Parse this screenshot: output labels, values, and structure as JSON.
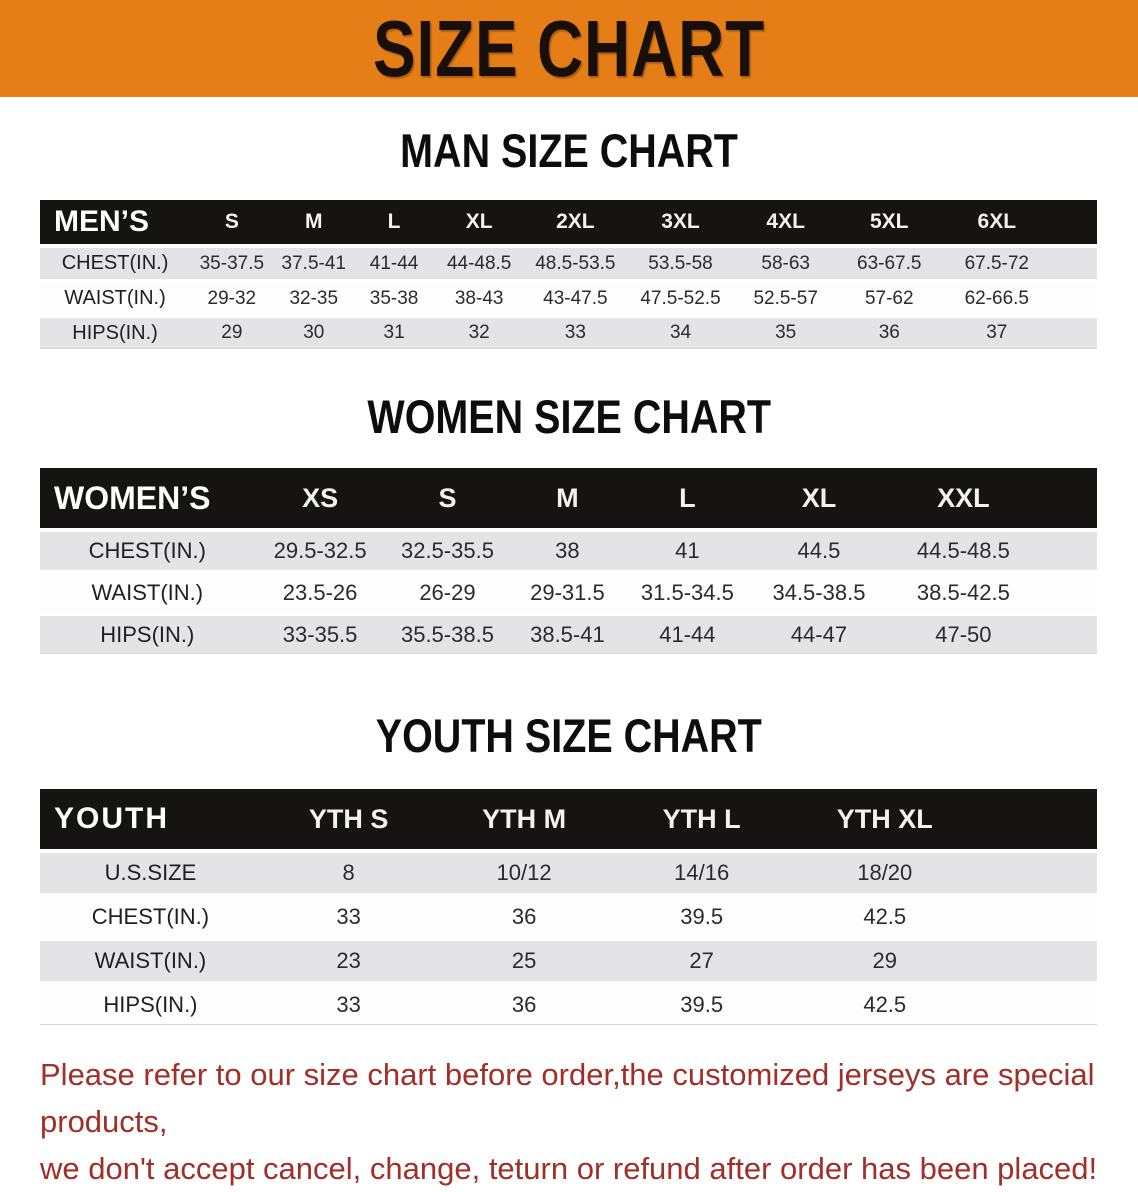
{
  "banner": {
    "title": "SIZE CHART",
    "bg_color": "#E67E17",
    "text_color": "#181008"
  },
  "sections": [
    {
      "title": "MAN SIZE CHART",
      "table": {
        "header_label": "MEN’S",
        "columns": [
          "S",
          "M",
          "L",
          "XL",
          "2XL",
          "3XL",
          "4XL",
          "5XL",
          "6XL"
        ],
        "rows": [
          {
            "label": "CHEST(IN.)",
            "values": [
              "35-37.5",
              "37.5-41",
              "41-44",
              "44-48.5",
              "48.5-53.5",
              "53.5-58",
              "58-63",
              "63-67.5",
              "67.5-72"
            ]
          },
          {
            "label": "WAIST(IN.)",
            "values": [
              "29-32",
              "32-35",
              "35-38",
              "38-43",
              "43-47.5",
              "47.5-52.5",
              "52.5-57",
              "57-62",
              "62-66.5"
            ]
          },
          {
            "label": "HIPS(IN.)",
            "values": [
              "29",
              "30",
              "31",
              "32",
              "33",
              "34",
              "35",
              "36",
              "37"
            ]
          }
        ]
      }
    },
    {
      "title": "WOMEN SIZE CHART",
      "table": {
        "header_label": "WOMEN’S",
        "columns": [
          "XS",
          "S",
          "M",
          "L",
          "XL",
          "XXL"
        ],
        "rows": [
          {
            "label": "CHEST(IN.)",
            "values": [
              "29.5-32.5",
              "32.5-35.5",
              "38",
              "41",
              "44.5",
              "44.5-48.5"
            ]
          },
          {
            "label": "WAIST(IN.)",
            "values": [
              "23.5-26",
              "26-29",
              "29-31.5",
              "31.5-34.5",
              "34.5-38.5",
              "38.5-42.5"
            ]
          },
          {
            "label": "HIPS(IN.)",
            "values": [
              "33-35.5",
              "35.5-38.5",
              "38.5-41",
              "41-44",
              "44-47",
              "47-50"
            ]
          }
        ]
      }
    },
    {
      "title": "YOUTH SIZE CHART",
      "table": {
        "header_label": "YOUTH",
        "columns": [
          "YTH S",
          "YTH M",
          "YTH L",
          "YTH XL"
        ],
        "rows": [
          {
            "label": "U.S.SIZE",
            "values": [
              "8",
              "10/12",
              "14/16",
              "18/20"
            ]
          },
          {
            "label": "CHEST(IN.)",
            "values": [
              "33",
              "36",
              "39.5",
              "42.5"
            ]
          },
          {
            "label": "WAIST(IN.)",
            "values": [
              "23",
              "25",
              "27",
              "29"
            ]
          },
          {
            "label": "HIPS(IN.)",
            "values": [
              "33",
              "36",
              "39.5",
              "42.5"
            ]
          }
        ]
      }
    }
  ],
  "disclaimer": {
    "line1": "Please refer to our size chart before order,the customized jerseys are special products,",
    "line2": "we don't accept cancel, change, teturn or refund after order has been placed!",
    "color": "#A22E28"
  }
}
